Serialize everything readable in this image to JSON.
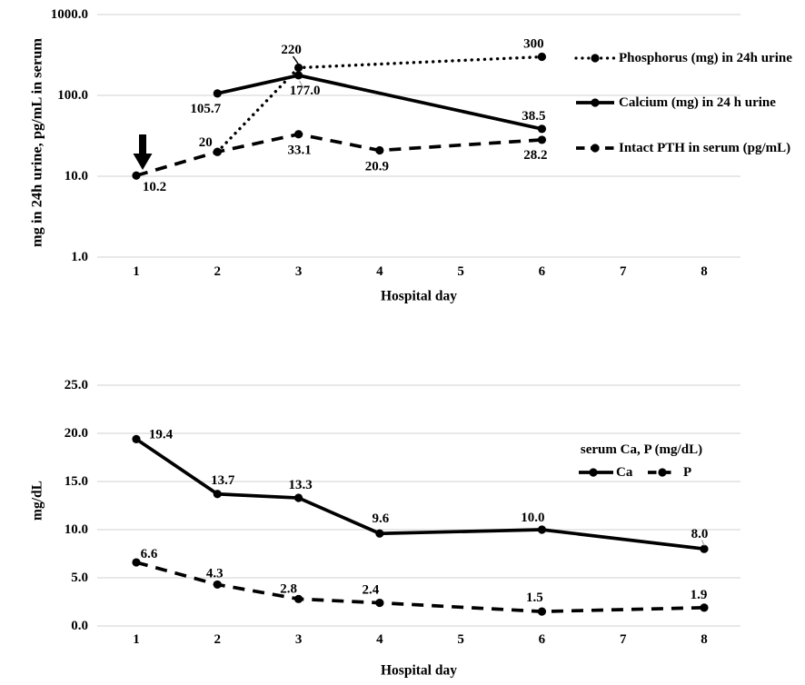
{
  "figure": {
    "background": "#ffffff",
    "gridline_color": "#d9d9d9",
    "series_color": "#000000",
    "leader_color": "#a0a0a0",
    "marker": "filled-circle"
  },
  "chart_data": [
    {
      "id": "urine-and-pth-log-chart",
      "type": "line",
      "xlabel": "Hospital day",
      "ylabel": "mg in 24h urine,  pg/mL in serum",
      "x_tick_labels": [
        "1",
        "2",
        "3",
        "4",
        "5",
        "6",
        "7",
        "8"
      ],
      "y_axis": {
        "scale": "log",
        "ticks": [
          1000,
          100,
          10,
          1
        ],
        "tick_labels": [
          "1000.0",
          "100.0",
          "10.0",
          "1.0"
        ],
        "range": [
          1,
          1000
        ]
      },
      "grid": true,
      "legend_position": "right",
      "series": [
        {
          "name": "Phosphorus (mg) in 24h urine",
          "line_style": "dotted",
          "marker": "circle",
          "x": [
            2,
            3,
            6
          ],
          "values": [
            20,
            220,
            300
          ],
          "point_labels": [
            "20",
            "220",
            "300"
          ]
        },
        {
          "name": "Calcium (mg) in 24 h urine",
          "line_style": "solid",
          "marker": "circle",
          "x": [
            2,
            3,
            6
          ],
          "values": [
            105.7,
            177.0,
            38.5
          ],
          "point_labels": [
            "105.7",
            "177.0",
            "38.5"
          ]
        },
        {
          "name": "Intact PTH in serum (pg/mL)",
          "line_style": "dashed",
          "marker": "circle",
          "x": [
            1,
            2,
            3,
            4,
            6
          ],
          "values": [
            10.2,
            20,
            33.1,
            20.9,
            28.2
          ],
          "point_labels": [
            "10.2",
            "",
            "33.1",
            "20.9",
            "28.2"
          ]
        }
      ],
      "annotations": [
        {
          "type": "down-arrow",
          "x": 1,
          "target_series": "Intact PTH in serum (pg/mL)",
          "target_value": 10.2
        }
      ]
    },
    {
      "id": "serum-ca-p-chart",
      "type": "line",
      "xlabel": "Hospital day",
      "ylabel": "mg/dL",
      "legend_title": "serum Ca, P (mg/dL)",
      "legend_position": "inside-right",
      "x_tick_labels": [
        "1",
        "2",
        "3",
        "4",
        "5",
        "6",
        "7",
        "8"
      ],
      "y_axis": {
        "scale": "linear",
        "ticks": [
          25,
          20,
          15,
          10,
          5,
          0
        ],
        "tick_labels": [
          "25.0",
          "20.0",
          "15.0",
          "10.0",
          "5.0",
          "0.0"
        ],
        "range": [
          0,
          25
        ]
      },
      "grid": true,
      "series": [
        {
          "name": "Ca",
          "line_style": "solid",
          "marker": "circle",
          "x": [
            1,
            2,
            3,
            4,
            6,
            8
          ],
          "values": [
            19.4,
            13.7,
            13.3,
            9.6,
            10.0,
            8.0
          ],
          "point_labels": [
            "19.4",
            "13.7",
            "13.3",
            "9.6",
            "10.0",
            "8.0"
          ]
        },
        {
          "name": "P",
          "line_style": "dashed",
          "marker": "circle",
          "x": [
            1,
            2,
            3,
            4,
            6,
            8
          ],
          "values": [
            6.6,
            4.3,
            2.8,
            2.4,
            1.5,
            1.9
          ],
          "point_labels": [
            "6.6",
            "4.3",
            "2.8",
            "2.4",
            "1.5",
            "1.9"
          ]
        }
      ]
    }
  ]
}
